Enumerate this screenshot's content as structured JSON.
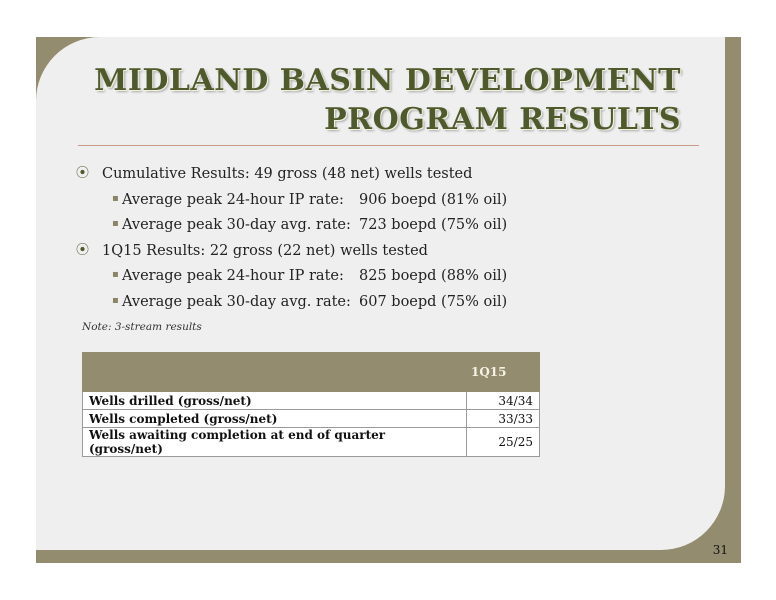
{
  "slide": {
    "title_line1": "MIDLAND BASIN DEVELOPMENT",
    "title_line2": "PROGRAM RESULTS",
    "bullets": [
      {
        "text": "Cumulative Results: 49 gross (48 net) wells tested",
        "sub": [
          {
            "label": "Average peak 24-hour IP rate:",
            "value": "906 boepd (81% oil)"
          },
          {
            "label": "Average peak 30-day avg. rate:",
            "value": "723 boepd (75% oil)"
          }
        ]
      },
      {
        "text": "1Q15 Results: 22 gross (22 net) wells tested",
        "sub": [
          {
            "label": "Average peak 24-hour IP rate:",
            "value": "825 boepd (88% oil)"
          },
          {
            "label": "Average peak 30-day avg. rate:",
            "value": "607 boepd (75% oil)"
          }
        ]
      }
    ],
    "note": "Note: 3-stream results",
    "table": {
      "header": "1Q15",
      "rows": [
        {
          "label": "Wells drilled (gross/net)",
          "value": "34/34"
        },
        {
          "label": "Wells completed (gross/net)",
          "value": "33/33"
        },
        {
          "label": "Wells awaiting completion at end of quarter (gross/net)",
          "value": "25/25"
        }
      ]
    },
    "page_number": "31"
  }
}
